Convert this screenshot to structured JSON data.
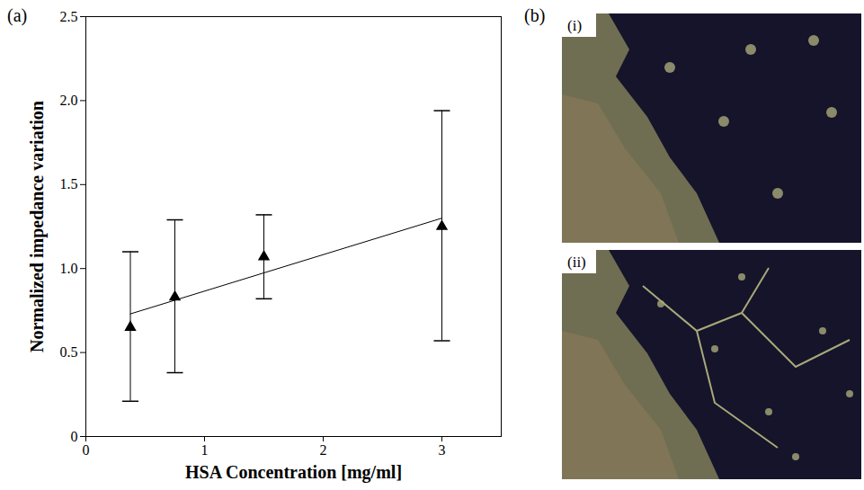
{
  "chart_data": {
    "type": "scatter",
    "x_label": "HSA Concentration [mg/ml]",
    "y_label": "Normalized impedance variation",
    "x": [
      0.375,
      0.75,
      1.5,
      3
    ],
    "values": [
      0.65,
      0.83,
      1.07,
      1.25
    ],
    "error_bars": {
      "low": [
        0.21,
        0.38,
        0.82,
        0.57
      ],
      "high": [
        1.1,
        1.29,
        1.32,
        1.94
      ]
    },
    "fit": {
      "x": [
        0.375,
        3
      ],
      "values": [
        0.73,
        1.3
      ]
    },
    "color": "#000000",
    "marker": "triangle",
    "xlim": [
      0,
      3.5
    ],
    "xticks": [
      0,
      1,
      2,
      3
    ],
    "ylim": [
      0,
      2.5
    ],
    "yticks": [
      0,
      0.5,
      {
        "value": 1,
        "label": "1.0"
      },
      1.5,
      {
        "value": 2,
        "label": "2.0"
      },
      2.5
    ],
    "grid": false
  },
  "panels": {
    "a": "(a)",
    "b": {
      "label": "(b)",
      "images": [
        "(i)",
        "(ii)"
      ]
    }
  }
}
